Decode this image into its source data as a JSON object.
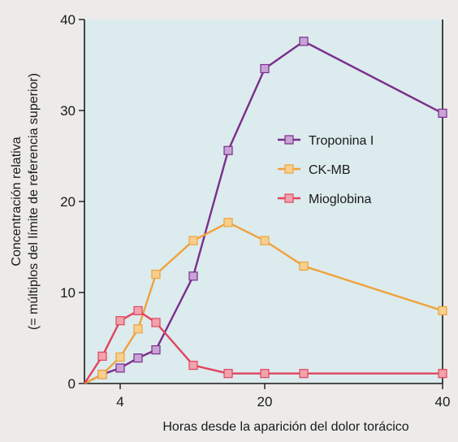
{
  "chart_data": {
    "type": "line",
    "xlabel": "Horas desde la aparición del dolor torácico",
    "ylabel_line1": "Concentración relativa",
    "ylabel_line2": "(= múltiplos del límite de referencia superior)",
    "xticks": [
      {
        "value": 4,
        "label": "4"
      },
      {
        "value": 20,
        "label": "20"
      },
      {
        "value": 40,
        "label": "40"
      }
    ],
    "yticks": [
      {
        "value": 0,
        "label": "0"
      },
      {
        "value": 10,
        "label": "10"
      },
      {
        "value": 20,
        "label": "20"
      },
      {
        "value": 30,
        "label": "30"
      },
      {
        "value": 40,
        "label": "40"
      }
    ],
    "ylim": [
      0,
      40
    ],
    "xlim": [
      0,
      40
    ],
    "x_origin_label": "",
    "plot_background": "#dcebed",
    "series": [
      {
        "name": "Troponina I",
        "color": "#7b2d8e",
        "marker_fill": "#c9a3d4",
        "x": [
          0,
          2,
          4,
          6,
          8,
          12,
          16,
          20,
          24,
          40
        ],
        "y": [
          0,
          1,
          1.7,
          2.8,
          3.7,
          11.8,
          25.6,
          34.6,
          37.6,
          29.7
        ]
      },
      {
        "name": "CK-MB",
        "color": "#f0a23c",
        "marker_fill": "#f7cf8e",
        "x": [
          0,
          2,
          4,
          6,
          8,
          12,
          16,
          20,
          24,
          40
        ],
        "y": [
          0,
          1,
          2.9,
          6,
          12,
          15.7,
          17.7,
          15.7,
          12.9,
          8
        ]
      },
      {
        "name": "Mioglobina",
        "color": "#e2445f",
        "marker_fill": "#f1a3ac",
        "x": [
          0,
          2,
          4,
          6,
          8,
          12,
          16,
          20,
          24,
          40
        ],
        "y": [
          0,
          3,
          6.9,
          8,
          6.7,
          2,
          1.1,
          1.1,
          1.1,
          1.1
        ]
      }
    ]
  }
}
